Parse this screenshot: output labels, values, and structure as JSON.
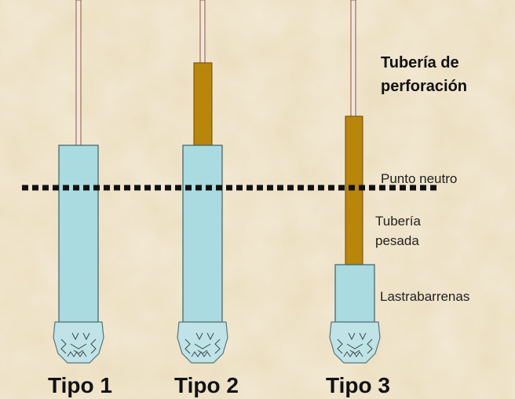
{
  "assemblies": [
    {
      "label": "Tipo 1"
    },
    {
      "label": "Tipo 2"
    },
    {
      "label": "Tipo 3"
    }
  ],
  "annotations": {
    "drill_pipe": [
      "Tubería de",
      "perforación"
    ],
    "neutral_point": "Punto neutro",
    "heavy_pipe": [
      "Tubería",
      "pesada"
    ],
    "drill_collars": "Lastrabarrenas"
  }
}
